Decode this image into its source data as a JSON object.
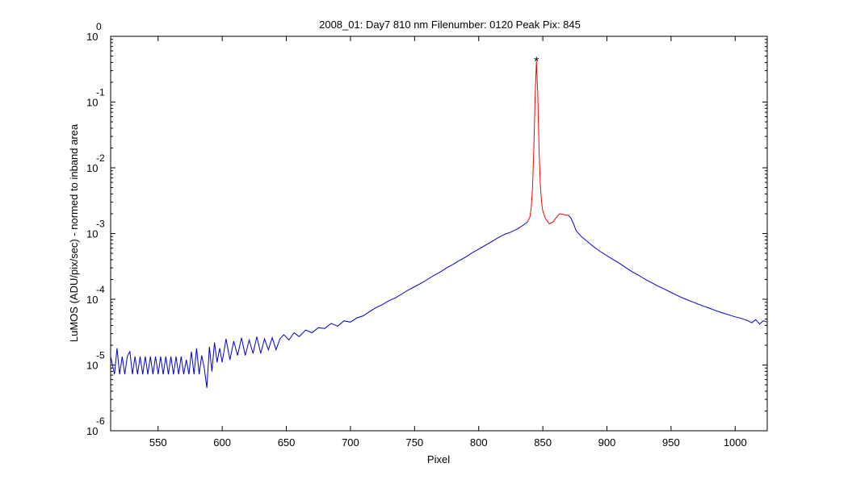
{
  "chart_data": {
    "type": "line",
    "title": "2008_01: Day7  810 nm  Filenumber: 0120 Peak Pix: 845",
    "xlabel": "Pixel",
    "ylabel": "LuMOS (ADU/pix/sec) - normed to inband area",
    "yscale": "log",
    "xlim": [
      513,
      1025
    ],
    "ylim": [
      1e-06,
      1
    ],
    "x_ticks": [
      550,
      600,
      650,
      700,
      750,
      800,
      850,
      900,
      950,
      1000
    ],
    "x_tick_labels": [
      "550",
      "600",
      "650",
      "700",
      "750",
      "800",
      "850",
      "900",
      "950",
      "1000"
    ],
    "y_ticks": [
      {
        "value": 1,
        "base": "10",
        "exp": "0"
      },
      {
        "value": 0.1,
        "base": "10",
        "exp": "-1"
      },
      {
        "value": 0.01,
        "base": "10",
        "exp": "-2"
      },
      {
        "value": 0.001,
        "base": "10",
        "exp": "-3"
      },
      {
        "value": 0.0001,
        "base": "10",
        "exp": "-4"
      },
      {
        "value": 1e-05,
        "base": "10",
        "exp": "-5"
      },
      {
        "value": 1e-06,
        "base": "10",
        "exp": "-6"
      }
    ],
    "grid": false,
    "series": [
      {
        "color": "#0000cc",
        "segments": [
          {
            "x": [
              513,
              516,
              518,
              520,
              522,
              524,
              526,
              528,
              530,
              532,
              534,
              536,
              538,
              540,
              542,
              544,
              546,
              548,
              550,
              552,
              554,
              556,
              558,
              560,
              562,
              564,
              566,
              568,
              570,
              572,
              574,
              576,
              578,
              580,
              582,
              584,
              586,
              588,
              590,
              592,
              594,
              596,
              598,
              600,
              603,
              606,
              609,
              612,
              615,
              618,
              621,
              624,
              627,
              630,
              633,
              636,
              639,
              642,
              645,
              648,
              652,
              656,
              660,
              665,
              670,
              675,
              680,
              685,
              690,
              695,
              700,
              705,
              710,
              715,
              720,
              725,
              730,
              735,
              740,
              745,
              750,
              755,
              760,
              765,
              770,
              775,
              780,
              785,
              790,
              795,
              800,
              805,
              810,
              815,
              820,
              825,
              830,
              835,
              838
            ],
            "y": [
              1.35e-05,
              7.2e-06,
              1.8e-05,
              7.2e-06,
              1.35e-05,
              7.2e-06,
              1.35e-05,
              1.6e-05,
              7.2e-06,
              1.35e-05,
              7.2e-06,
              1.35e-05,
              7.2e-06,
              1.35e-05,
              7.2e-06,
              1.35e-05,
              7.2e-06,
              1.35e-05,
              7.2e-06,
              1.35e-05,
              7.2e-06,
              1.35e-05,
              7.2e-06,
              1.35e-05,
              7.2e-06,
              1.35e-05,
              7.2e-06,
              1.35e-05,
              7.2e-06,
              1.2e-05,
              7.2e-06,
              1.6e-05,
              7.2e-06,
              1.8e-05,
              7.2e-06,
              1.4e-05,
              9e-06,
              4.5e-06,
              1.9e-05,
              8e-06,
              2.2e-05,
              1.1e-05,
              1.8e-05,
              1.1e-05,
              2.5e-05,
              1.2e-05,
              2.3e-05,
              1.4e-05,
              2.6e-05,
              1.4e-05,
              2.4e-05,
              1.5e-05,
              2.7e-05,
              1.5e-05,
              2.5e-05,
              1.7e-05,
              2.6e-05,
              1.7e-05,
              2.5e-05,
              2.9e-05,
              2.4e-05,
              3.1e-05,
              2.7e-05,
              3.4e-05,
              3.1e-05,
              3.7e-05,
              3.6e-05,
              4.3e-05,
              3.9e-05,
              4.7e-05,
              4.5e-05,
              5.2e-05,
              5.6e-05,
              6.5e-05,
              7.5e-05,
              8.3e-05,
              9.5e-05,
              0.000105,
              0.00012,
              0.000138,
              0.000155,
              0.000175,
              0.0002,
              0.00023,
              0.00026,
              0.0003,
              0.00034,
              0.00039,
              0.00044,
              0.00051,
              0.00058,
              0.00066,
              0.00075,
              0.00086,
              0.00097,
              0.00105,
              0.00117,
              0.00135,
              0.0015
            ]
          },
          {
            "x": [
              870,
              872,
              874,
              876,
              880,
              885,
              890,
              895,
              900,
              905,
              910,
              915,
              920,
              925,
              930,
              935,
              940,
              945,
              950,
              955,
              960,
              965,
              970,
              975,
              980,
              985,
              990,
              995,
              1000,
              1005,
              1010,
              1013,
              1016,
              1019,
              1022,
              1025
            ],
            "y": [
              0.0019,
              0.0017,
              0.0014,
              0.0011,
              0.0009,
              0.00075,
              0.00062,
              0.00053,
              0.00046,
              0.0004,
              0.00035,
              0.0003,
              0.00026,
              0.00023,
              0.0002,
              0.000178,
              0.000158,
              0.000142,
              0.000127,
              0.000114,
              0.000103,
              9.4e-05,
              8.6e-05,
              7.9e-05,
              7.3e-05,
              6.7e-05,
              6.2e-05,
              5.8e-05,
              5.4e-05,
              5.1e-05,
              4.7e-05,
              4.4e-05,
              4.9e-05,
              4.2e-05,
              4.7e-05,
              4.5e-05
            ]
          }
        ]
      },
      {
        "color": "#ff0000",
        "segments": [
          {
            "x": [
              838,
              840,
              841,
              842,
              843,
              844,
              845,
              846,
              847,
              848,
              849,
              850,
              852,
              855,
              858,
              860,
              863,
              866,
              868,
              870
            ],
            "y": [
              0.0015,
              0.0018,
              0.0025,
              0.005,
              0.02,
              0.12,
              0.42,
              0.14,
              0.02,
              0.006,
              0.003,
              0.0022,
              0.0017,
              0.0014,
              0.0015,
              0.0017,
              0.002,
              0.00195,
              0.0019,
              0.0019
            ]
          }
        ]
      }
    ],
    "peak_marker": {
      "x": 845,
      "y": 0.45,
      "symbol": "*",
      "color": "#ff0000"
    }
  }
}
